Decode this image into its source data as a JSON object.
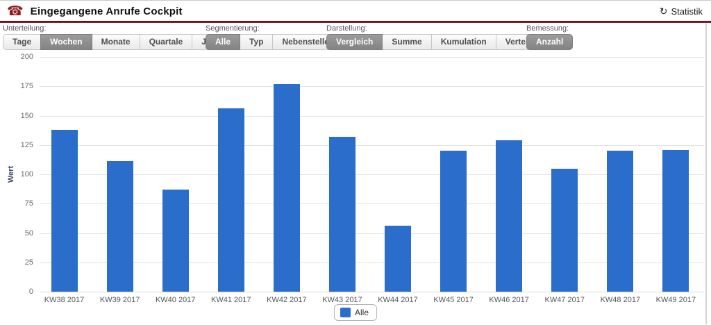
{
  "header": {
    "title": "Eingegangene Anrufe Cockpit",
    "phone_icon": "☎",
    "refresh_icon": "↻",
    "statistik_label": "Statistik"
  },
  "toolbar": {
    "groups": [
      {
        "label": "Unterteilung:",
        "buttons": [
          {
            "label": "Tage",
            "selected": false
          },
          {
            "label": "Wochen",
            "selected": true
          },
          {
            "label": "Monate",
            "selected": false
          },
          {
            "label": "Quartale",
            "selected": false
          },
          {
            "label": "Jahre",
            "selected": false
          }
        ]
      },
      {
        "label": "Segmentierung:",
        "buttons": [
          {
            "label": "Alle",
            "selected": true
          },
          {
            "label": "Typ",
            "selected": false
          },
          {
            "label": "Nebenstelle",
            "selected": false
          }
        ]
      },
      {
        "label": "Darstellung:",
        "buttons": [
          {
            "label": "Vergleich",
            "selected": true
          },
          {
            "label": "Summe",
            "selected": false
          },
          {
            "label": "Kumulation",
            "selected": false
          },
          {
            "label": "Verteilung",
            "selected": false
          }
        ]
      },
      {
        "label": "Bemessung:",
        "buttons": [
          {
            "label": "Anzahl",
            "selected": true
          }
        ]
      }
    ]
  },
  "chart_data": {
    "type": "bar",
    "title": "",
    "xlabel": "",
    "ylabel": "Wert",
    "ylim": [
      0,
      200
    ],
    "yticks": [
      0,
      25,
      50,
      75,
      100,
      125,
      150,
      175,
      200
    ],
    "grid": true,
    "legend_position": "bottom",
    "categories": [
      "KW38 2017",
      "KW39 2017",
      "KW40 2017",
      "KW41 2017",
      "KW42 2017",
      "KW43 2017",
      "KW44 2017",
      "KW45 2017",
      "KW46 2017",
      "KW47 2017",
      "KW48 2017",
      "KW49 2017"
    ],
    "series": [
      {
        "name": "Alle",
        "color": "#2b6dca",
        "values": [
          138,
          111,
          87,
          156,
          177,
          132,
          56,
          120,
          129,
          105,
          120,
          121
        ]
      }
    ]
  },
  "colors": {
    "bar": "#2b6dca",
    "divider": "#7d1218",
    "selected_button": "#8d8d8d",
    "phone_icon": "#8e1b1b"
  }
}
